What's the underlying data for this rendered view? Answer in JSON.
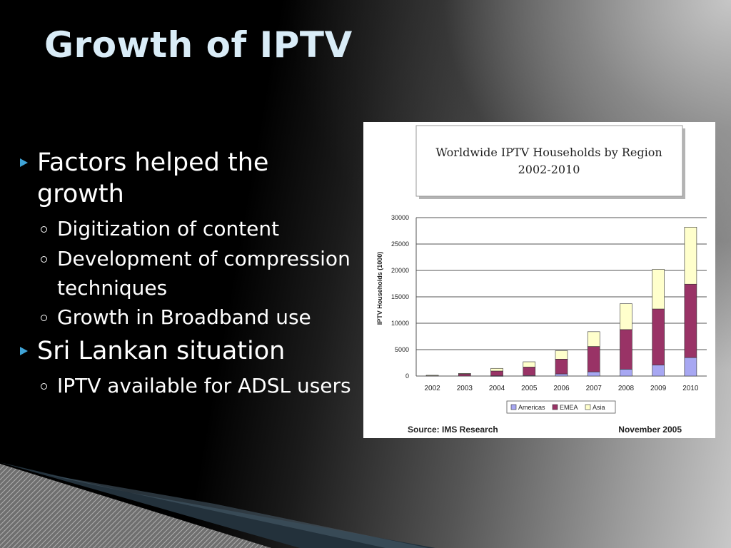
{
  "slide": {
    "title": "Growth of IPTV",
    "bullets": [
      {
        "text": "Factors helped the growth",
        "sub": [
          "Digitization of content",
          "Development of compression techniques",
          "Growth in Broadband use"
        ]
      },
      {
        "text": "Sri Lankan situation",
        "sub": [
          "IPTV available for ADSL users"
        ]
      }
    ]
  },
  "chart_data": {
    "type": "bar",
    "stacked": true,
    "title": "Worldwide IPTV Households by Region",
    "subtitle": "2002-2010",
    "ylabel": "IPTV Households (1000)",
    "xlabel": "",
    "ylim": [
      0,
      30000
    ],
    "yticks": [
      0,
      5000,
      10000,
      15000,
      20000,
      25000,
      30000
    ],
    "grid": true,
    "legend": "bottom",
    "categories": [
      "2002",
      "2003",
      "2004",
      "2005",
      "2006",
      "2007",
      "2008",
      "2009",
      "2010"
    ],
    "series": [
      {
        "name": "Americas",
        "color": "#a7a7f2",
        "values": [
          0,
          0,
          50,
          100,
          400,
          800,
          1300,
          2100,
          3500
        ]
      },
      {
        "name": "EMEA",
        "color": "#993366",
        "values": [
          100,
          400,
          900,
          1600,
          2800,
          4800,
          7500,
          10600,
          13900
        ]
      },
      {
        "name": "Asia",
        "color": "#ffffcc",
        "values": [
          50,
          100,
          500,
          1000,
          1600,
          2800,
          4900,
          7500,
          10800
        ]
      }
    ],
    "source": "Source: IMS Research",
    "date": "November 2005"
  }
}
